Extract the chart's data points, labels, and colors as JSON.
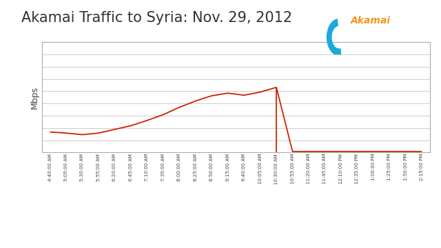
{
  "title": "Akamai Traffic to Syria: Nov. 29, 2012",
  "ylabel": "Mbps",
  "line_color": "#cc2200",
  "background_color": "#ffffff",
  "plot_bg_color": "#ffffff",
  "grid_color": "#cccccc",
  "title_fontsize": 15,
  "tick_labels": [
    "4:40:00 AM",
    "5:05:00 AM",
    "5:30:00 AM",
    "5:55:00 AM",
    "6:20:00 AM",
    "6:45:00 AM",
    "7:10:00 AM",
    "7:35:00 AM",
    "8:00:00 AM",
    "8:25:00 AM",
    "8:50:00 AM",
    "9:15:00 AM",
    "9:40:00 AM",
    "10:05:00 AM",
    "10:30:00 AM",
    "10:55:00 AM",
    "11:20:00 AM",
    "11:45:00 AM",
    "12:10:00 PM",
    "12:35:00 PM",
    "1:00:00 PM",
    "1:25:00 PM",
    "1:50:00 PM",
    "2:15:00 PM"
  ],
  "x_values": [
    0,
    1,
    2,
    3,
    4,
    5,
    6,
    7,
    8,
    9,
    10,
    11,
    12,
    13,
    14,
    15,
    16,
    17,
    18,
    19,
    20,
    21,
    22,
    23
  ],
  "y_values": [
    0.3,
    0.28,
    0.21,
    0.25,
    0.3,
    0.36,
    0.43,
    0.52,
    0.61,
    0.69,
    0.74,
    0.79,
    0.77,
    0.83,
    0.88,
    0.01,
    0.01,
    0.01,
    0.01,
    0.01,
    0.01,
    0.01,
    0.01,
    0.01
  ],
  "drop_index": 14,
  "ylim": [
    0,
    1.05
  ],
  "n_gridlines": 9,
  "logo_color_blue": "#1aabdb",
  "logo_color_orange": "#f7941d"
}
